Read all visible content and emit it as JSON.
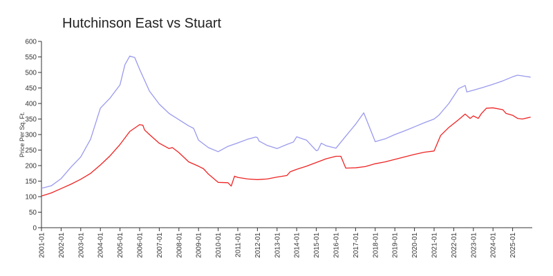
{
  "chart_data": {
    "type": "line",
    "title": "Hutchinson East vs Stuart",
    "xlabel": "",
    "ylabel": "Price Per Sq. Ft.",
    "ylim": [
      0,
      600
    ],
    "yticks": [
      0,
      50,
      100,
      150,
      200,
      250,
      300,
      350,
      400,
      450,
      500,
      550,
      600
    ],
    "xlim": [
      "2001-01",
      "2026-01"
    ],
    "xticks": [
      "2001-01",
      "2002-01",
      "2003-01",
      "2004-01",
      "2005-01",
      "2006-01",
      "2007-01",
      "2008-01",
      "2009-01",
      "2010-01",
      "2011-01",
      "2012-01",
      "2013-01",
      "2014-01",
      "2015-01",
      "2016-01",
      "2017-01",
      "2018-01",
      "2019-01",
      "2020-01",
      "2021-01",
      "2022-01",
      "2023-01",
      "2024-01",
      "2025-01"
    ],
    "grid": false,
    "legend": "none",
    "series": [
      {
        "color": "#9999ee",
        "points": [
          [
            "2001-01",
            127
          ],
          [
            "2001-07",
            135
          ],
          [
            "2002-01",
            158
          ],
          [
            "2002-07",
            195
          ],
          [
            "2003-01",
            228
          ],
          [
            "2003-07",
            285
          ],
          [
            "2004-01",
            385
          ],
          [
            "2004-07",
            418
          ],
          [
            "2005-01",
            460
          ],
          [
            "2005-04",
            525
          ],
          [
            "2005-07",
            553
          ],
          [
            "2005-10",
            548
          ],
          [
            "2006-01",
            510
          ],
          [
            "2006-07",
            440
          ],
          [
            "2007-01",
            398
          ],
          [
            "2007-07",
            368
          ],
          [
            "2008-01",
            348
          ],
          [
            "2008-04",
            338
          ],
          [
            "2008-07",
            328
          ],
          [
            "2008-10",
            320
          ],
          [
            "2009-01",
            282
          ],
          [
            "2009-07",
            258
          ],
          [
            "2010-01",
            245
          ],
          [
            "2010-07",
            262
          ],
          [
            "2011-01",
            273
          ],
          [
            "2011-07",
            285
          ],
          [
            "2011-12",
            292
          ],
          [
            "2012-01",
            290
          ],
          [
            "2012-02",
            279
          ],
          [
            "2012-07",
            265
          ],
          [
            "2013-01",
            255
          ],
          [
            "2013-07",
            268
          ],
          [
            "2013-11",
            276
          ],
          [
            "2014-01",
            293
          ],
          [
            "2014-07",
            282
          ],
          [
            "2015-01",
            248
          ],
          [
            "2015-02",
            250
          ],
          [
            "2015-04",
            272
          ],
          [
            "2015-07",
            264
          ],
          [
            "2016-01",
            256
          ],
          [
            "2016-07",
            295
          ],
          [
            "2017-01",
            333
          ],
          [
            "2017-06",
            370
          ],
          [
            "2018-01",
            277
          ],
          [
            "2018-07",
            286
          ],
          [
            "2019-01",
            300
          ],
          [
            "2019-07",
            312
          ],
          [
            "2020-01",
            325
          ],
          [
            "2020-07",
            338
          ],
          [
            "2021-01",
            350
          ],
          [
            "2021-04",
            363
          ],
          [
            "2021-10",
            400
          ],
          [
            "2022-04",
            448
          ],
          [
            "2022-08",
            458
          ],
          [
            "2022-09",
            437
          ],
          [
            "2023-01",
            443
          ],
          [
            "2023-07",
            452
          ],
          [
            "2024-01",
            462
          ],
          [
            "2024-07",
            473
          ],
          [
            "2025-01",
            486
          ],
          [
            "2025-04",
            491
          ],
          [
            "2025-07",
            489
          ],
          [
            "2025-12",
            485
          ]
        ]
      },
      {
        "color": "#ee2222",
        "points": [
          [
            "2001-01",
            102
          ],
          [
            "2001-07",
            112
          ],
          [
            "2002-01",
            126
          ],
          [
            "2002-07",
            140
          ],
          [
            "2003-01",
            156
          ],
          [
            "2003-07",
            175
          ],
          [
            "2004-01",
            202
          ],
          [
            "2004-07",
            232
          ],
          [
            "2005-01",
            268
          ],
          [
            "2005-07",
            310
          ],
          [
            "2006-01",
            332
          ],
          [
            "2006-03",
            330
          ],
          [
            "2006-04",
            315
          ],
          [
            "2006-07",
            300
          ],
          [
            "2007-01",
            272
          ],
          [
            "2007-07",
            255
          ],
          [
            "2007-09",
            258
          ],
          [
            "2008-01",
            242
          ],
          [
            "2008-07",
            212
          ],
          [
            "2009-01",
            198
          ],
          [
            "2009-04",
            190
          ],
          [
            "2009-07",
            173
          ],
          [
            "2010-01",
            146
          ],
          [
            "2010-07",
            145
          ],
          [
            "2010-09",
            134
          ],
          [
            "2010-11",
            166
          ],
          [
            "2011-01",
            162
          ],
          [
            "2011-07",
            157
          ],
          [
            "2012-01",
            155
          ],
          [
            "2012-07",
            157
          ],
          [
            "2013-01",
            163
          ],
          [
            "2013-07",
            168
          ],
          [
            "2013-09",
            180
          ],
          [
            "2014-01",
            188
          ],
          [
            "2014-07",
            198
          ],
          [
            "2015-01",
            210
          ],
          [
            "2015-07",
            222
          ],
          [
            "2016-01",
            230
          ],
          [
            "2016-04",
            230
          ],
          [
            "2016-07",
            192
          ],
          [
            "2017-01",
            193
          ],
          [
            "2017-07",
            197
          ],
          [
            "2018-01",
            206
          ],
          [
            "2018-07",
            212
          ],
          [
            "2019-01",
            220
          ],
          [
            "2019-07",
            228
          ],
          [
            "2020-01",
            236
          ],
          [
            "2020-07",
            243
          ],
          [
            "2021-01",
            247
          ],
          [
            "2021-05",
            297
          ],
          [
            "2021-10",
            323
          ],
          [
            "2022-04",
            348
          ],
          [
            "2022-08",
            366
          ],
          [
            "2022-11",
            352
          ],
          [
            "2023-01",
            360
          ],
          [
            "2023-04",
            352
          ],
          [
            "2023-06",
            368
          ],
          [
            "2023-09",
            385
          ],
          [
            "2024-01",
            386
          ],
          [
            "2024-07",
            380
          ],
          [
            "2024-09",
            368
          ],
          [
            "2025-01",
            362
          ],
          [
            "2025-04",
            352
          ],
          [
            "2025-07",
            350
          ],
          [
            "2025-12",
            356
          ]
        ]
      }
    ]
  }
}
